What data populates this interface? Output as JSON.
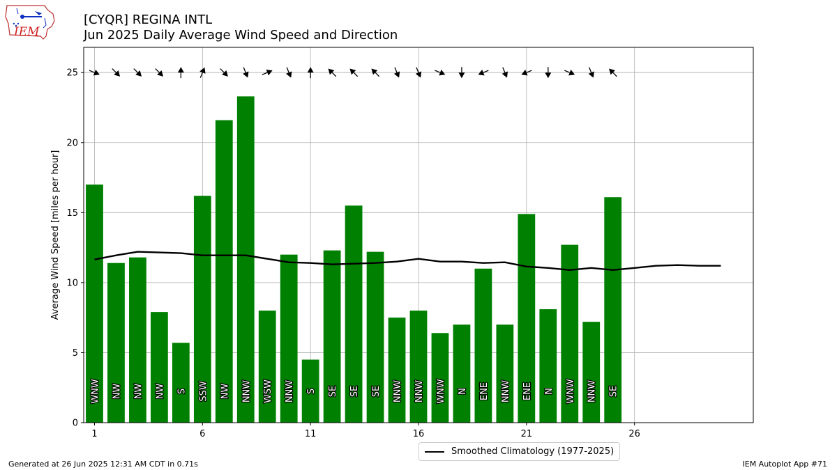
{
  "header": {
    "station": "[CYQR] REGINA INTL",
    "subtitle": "Jun 2025 Daily Average Wind Speed and Direction"
  },
  "logo": {
    "text": "IEM",
    "icon": "iem-iowa-logo"
  },
  "footer": {
    "generated": "Generated at 26 Jun 2025 12:31 AM CDT in 0.71s",
    "app": "IEM Autoplot App #71"
  },
  "legend": {
    "label": "Smoothed Climatology (1977-2025)"
  },
  "chart_data": {
    "type": "bar",
    "ylabel": "Average Wind Speed [miles per hour]",
    "xlabel": "",
    "xlim": [
      0.5,
      31.5
    ],
    "ylim": [
      0,
      26.8
    ],
    "xticks": [
      1,
      6,
      11,
      16,
      21,
      26
    ],
    "yticks": [
      0,
      5,
      10,
      15,
      20,
      25
    ],
    "grid": true,
    "legend_position": "bottom-center",
    "colors": {
      "bars": "#008000",
      "climatology": "#000000",
      "grid": "#b0b0b0"
    },
    "days": [
      1,
      2,
      3,
      4,
      5,
      6,
      7,
      8,
      9,
      10,
      11,
      12,
      13,
      14,
      15,
      16,
      17,
      18,
      19,
      20,
      21,
      22,
      23,
      24,
      25
    ],
    "speeds": [
      17.0,
      11.4,
      11.8,
      7.9,
      5.7,
      16.2,
      21.6,
      23.3,
      8.0,
      12.0,
      4.5,
      12.3,
      15.5,
      12.2,
      7.5,
      8.0,
      6.4,
      7.0,
      11.0,
      7.0,
      14.9,
      8.1,
      12.7,
      7.2,
      16.1
    ],
    "directions": [
      "WNW",
      "NW",
      "NW",
      "NW",
      "S",
      "SSW",
      "NW",
      "NNW",
      "WSW",
      "NNW",
      "S",
      "SE",
      "SE",
      "SE",
      "NNW",
      "NNW",
      "WNW",
      "N",
      "ENE",
      "NNW",
      "ENE",
      "N",
      "WNW",
      "NNW",
      "SE"
    ],
    "arrow_y": 25,
    "climatology": {
      "name": "Smoothed Climatology (1977-2025)",
      "x": [
        1,
        2,
        3,
        4,
        5,
        6,
        7,
        8,
        9,
        10,
        11,
        12,
        13,
        14,
        15,
        16,
        17,
        18,
        19,
        20,
        21,
        22,
        23,
        24,
        25,
        26,
        27,
        28,
        29,
        30
      ],
      "values": [
        11.65,
        11.95,
        12.2,
        12.15,
        12.1,
        11.95,
        11.95,
        11.95,
        11.7,
        11.45,
        11.4,
        11.3,
        11.35,
        11.4,
        11.5,
        11.7,
        11.5,
        11.5,
        11.4,
        11.45,
        11.15,
        11.05,
        10.9,
        11.05,
        10.9,
        11.05,
        11.2,
        11.25,
        11.2,
        11.2
      ]
    }
  }
}
